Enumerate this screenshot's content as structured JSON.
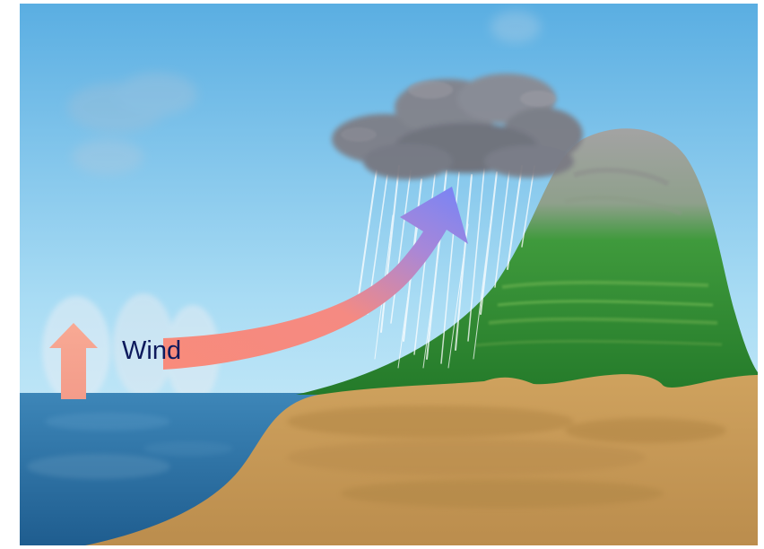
{
  "diagram": {
    "labels": {
      "wind": "Wind"
    },
    "components": [
      "sky",
      "sea",
      "evaporation-arrow",
      "wind-arrow",
      "rain-cloud",
      "rain",
      "mountain",
      "land"
    ],
    "colors": {
      "sky_top": "#5fb0e2",
      "sky_bottom": "#d8f1fb",
      "sea": "#2f73a6",
      "land": "#c79a5a",
      "mountain_green": "#2f8a34",
      "mountain_rock": "#9c9c9c",
      "cloud": "#7d7d85",
      "wind_start": "#f7897a",
      "wind_end": "#7b86f5",
      "evaporation_arrow": "#f5a08c",
      "label_text": "#0d1a5c"
    }
  }
}
